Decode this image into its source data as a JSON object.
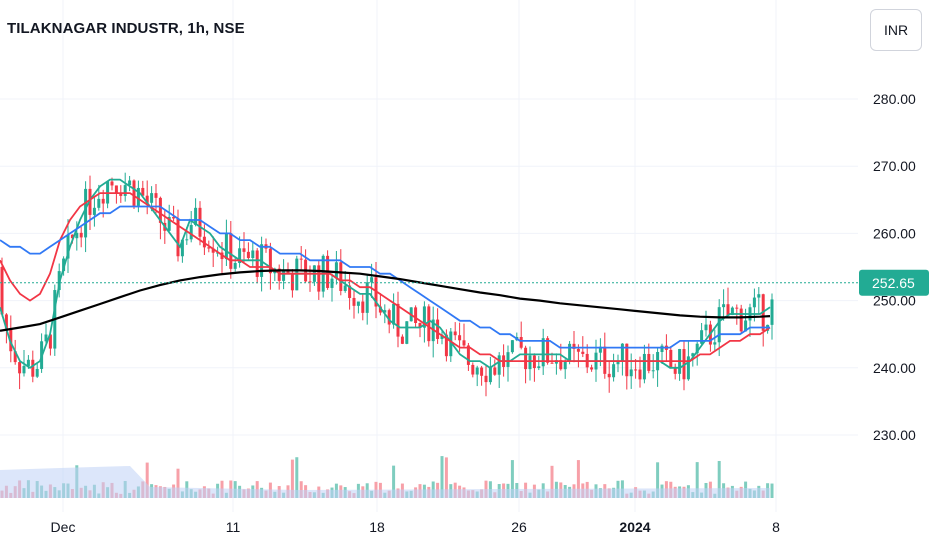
{
  "header": {
    "title": "TILAKNAGAR INDUSTR, 1h, NSE"
  },
  "currency_button": {
    "label": "INR"
  },
  "chart_data": {
    "type": "candlestick",
    "title": "TILAKNAGAR INDUSTR, 1h, NSE",
    "y_axis": {
      "ticks": [
        "280.00",
        "270.00",
        "260.00",
        "250.00",
        "240.00",
        "230.00"
      ],
      "range": [
        220.5,
        288
      ],
      "position": "right"
    },
    "x_axis": {
      "ticks": [
        "Dec",
        "11",
        "18",
        "26",
        "2024",
        "8"
      ]
    },
    "last_price": {
      "label": "252.65",
      "value": 252.65,
      "color": "#22ab94"
    },
    "grid": true,
    "colors": {
      "up": "#22ab94",
      "down": "#f23645",
      "up_volume": "#7fcdbf",
      "down_volume": "#f7a0a8"
    },
    "moving_averages": [
      {
        "color": "#22ab94",
        "points": [
          [
            0,
            249
          ],
          [
            10,
            244
          ],
          [
            20,
            241
          ],
          [
            30,
            240
          ],
          [
            40,
            241
          ],
          [
            50,
            245
          ],
          [
            60,
            253
          ],
          [
            70,
            258
          ],
          [
            80,
            262
          ],
          [
            90,
            265
          ],
          [
            100,
            267
          ],
          [
            110,
            268
          ],
          [
            120,
            268
          ],
          [
            130,
            267
          ],
          [
            140,
            266
          ],
          [
            150,
            264
          ],
          [
            160,
            262
          ],
          [
            170,
            260
          ],
          [
            180,
            258
          ],
          [
            190,
            262
          ],
          [
            200,
            261
          ],
          [
            210,
            260
          ],
          [
            220,
            258
          ],
          [
            230,
            257
          ],
          [
            240,
            256
          ],
          [
            250,
            256
          ],
          [
            260,
            256
          ],
          [
            270,
            255
          ],
          [
            280,
            254
          ],
          [
            290,
            254
          ],
          [
            300,
            254
          ],
          [
            310,
            254
          ],
          [
            320,
            254
          ],
          [
            330,
            254
          ],
          [
            340,
            253
          ],
          [
            350,
            252
          ],
          [
            360,
            251
          ],
          [
            370,
            251
          ],
          [
            380,
            249
          ],
          [
            390,
            247
          ],
          [
            400,
            246
          ],
          [
            410,
            246
          ],
          [
            420,
            246
          ],
          [
            430,
            247
          ],
          [
            440,
            246
          ],
          [
            450,
            244
          ],
          [
            460,
            242
          ],
          [
            470,
            241
          ],
          [
            480,
            241
          ],
          [
            490,
            240
          ],
          [
            500,
            241
          ],
          [
            510,
            241
          ],
          [
            520,
            242
          ],
          [
            530,
            242
          ],
          [
            540,
            242
          ],
          [
            550,
            242
          ],
          [
            560,
            242
          ],
          [
            570,
            241
          ],
          [
            580,
            241
          ],
          [
            590,
            241
          ],
          [
            600,
            241
          ],
          [
            610,
            241
          ],
          [
            620,
            241
          ],
          [
            630,
            241
          ],
          [
            640,
            241
          ],
          [
            650,
            241
          ],
          [
            660,
            241
          ],
          [
            670,
            240
          ],
          [
            680,
            240
          ],
          [
            690,
            241
          ],
          [
            700,
            243
          ],
          [
            710,
            245
          ],
          [
            720,
            247
          ],
          [
            730,
            248
          ],
          [
            740,
            248
          ],
          [
            750,
            248
          ],
          [
            760,
            248
          ],
          [
            770,
            249
          ]
        ]
      },
      {
        "color": "#f23645",
        "points": [
          [
            0,
            256
          ],
          [
            10,
            253
          ],
          [
            20,
            251
          ],
          [
            30,
            250
          ],
          [
            40,
            251
          ],
          [
            50,
            254
          ],
          [
            60,
            259
          ],
          [
            70,
            262
          ],
          [
            80,
            264
          ],
          [
            90,
            265
          ],
          [
            100,
            266
          ],
          [
            110,
            266
          ],
          [
            120,
            266
          ],
          [
            130,
            266
          ],
          [
            140,
            265
          ],
          [
            150,
            264
          ],
          [
            160,
            263
          ],
          [
            170,
            262
          ],
          [
            180,
            261
          ],
          [
            190,
            260
          ],
          [
            200,
            259
          ],
          [
            210,
            258
          ],
          [
            220,
            257
          ],
          [
            230,
            256
          ],
          [
            240,
            256
          ],
          [
            250,
            255
          ],
          [
            260,
            255
          ],
          [
            270,
            255
          ],
          [
            280,
            254
          ],
          [
            290,
            254
          ],
          [
            300,
            254
          ],
          [
            310,
            254
          ],
          [
            320,
            254
          ],
          [
            330,
            254
          ],
          [
            340,
            253
          ],
          [
            350,
            253
          ],
          [
            360,
            252
          ],
          [
            370,
            252
          ],
          [
            380,
            251
          ],
          [
            390,
            250
          ],
          [
            400,
            249
          ],
          [
            410,
            248
          ],
          [
            420,
            247
          ],
          [
            430,
            246
          ],
          [
            440,
            245
          ],
          [
            450,
            244
          ],
          [
            460,
            243
          ],
          [
            470,
            243
          ],
          [
            480,
            242
          ],
          [
            490,
            242
          ],
          [
            500,
            241
          ],
          [
            510,
            241
          ],
          [
            520,
            241
          ],
          [
            530,
            241
          ],
          [
            540,
            241
          ],
          [
            550,
            241
          ],
          [
            560,
            241
          ],
          [
            570,
            241
          ],
          [
            580,
            241
          ],
          [
            590,
            241
          ],
          [
            600,
            241
          ],
          [
            610,
            241
          ],
          [
            620,
            241
          ],
          [
            630,
            241
          ],
          [
            640,
            241
          ],
          [
            650,
            241
          ],
          [
            660,
            241
          ],
          [
            670,
            241
          ],
          [
            680,
            241
          ],
          [
            690,
            241
          ],
          [
            700,
            242
          ],
          [
            710,
            242
          ],
          [
            720,
            243
          ],
          [
            730,
            244
          ],
          [
            740,
            244
          ],
          [
            750,
            245
          ],
          [
            760,
            245
          ],
          [
            770,
            246
          ]
        ]
      },
      {
        "color": "#3179f5",
        "points": [
          [
            0,
            259
          ],
          [
            10,
            258
          ],
          [
            20,
            258
          ],
          [
            30,
            257
          ],
          [
            40,
            257
          ],
          [
            50,
            258
          ],
          [
            60,
            259
          ],
          [
            70,
            260
          ],
          [
            80,
            261
          ],
          [
            90,
            262
          ],
          [
            100,
            263
          ],
          [
            110,
            263
          ],
          [
            120,
            264
          ],
          [
            130,
            264
          ],
          [
            140,
            264
          ],
          [
            150,
            264
          ],
          [
            160,
            264
          ],
          [
            170,
            263
          ],
          [
            180,
            262
          ],
          [
            190,
            262
          ],
          [
            200,
            262
          ],
          [
            210,
            261
          ],
          [
            220,
            260
          ],
          [
            230,
            260
          ],
          [
            240,
            259
          ],
          [
            250,
            259
          ],
          [
            260,
            258
          ],
          [
            270,
            258
          ],
          [
            280,
            257
          ],
          [
            290,
            257
          ],
          [
            300,
            257
          ],
          [
            310,
            256
          ],
          [
            320,
            256
          ],
          [
            330,
            256
          ],
          [
            340,
            256
          ],
          [
            350,
            255
          ],
          [
            360,
            255
          ],
          [
            370,
            255
          ],
          [
            380,
            254
          ],
          [
            390,
            254
          ],
          [
            400,
            253
          ],
          [
            410,
            252
          ],
          [
            420,
            251
          ],
          [
            430,
            250
          ],
          [
            440,
            249
          ],
          [
            450,
            248
          ],
          [
            460,
            247
          ],
          [
            470,
            247
          ],
          [
            480,
            246
          ],
          [
            490,
            246
          ],
          [
            500,
            245
          ],
          [
            510,
            245
          ],
          [
            520,
            244
          ],
          [
            530,
            244
          ],
          [
            540,
            244
          ],
          [
            550,
            244
          ],
          [
            560,
            243
          ],
          [
            570,
            243
          ],
          [
            580,
            243
          ],
          [
            590,
            243
          ],
          [
            600,
            243
          ],
          [
            610,
            243
          ],
          [
            620,
            243
          ],
          [
            630,
            243
          ],
          [
            640,
            243
          ],
          [
            650,
            243
          ],
          [
            660,
            243
          ],
          [
            670,
            243
          ],
          [
            680,
            244
          ],
          [
            690,
            244
          ],
          [
            700,
            244
          ],
          [
            710,
            244
          ],
          [
            720,
            245
          ],
          [
            730,
            245
          ],
          [
            740,
            245
          ],
          [
            750,
            246
          ],
          [
            760,
            246
          ],
          [
            770,
            246
          ]
        ]
      },
      {
        "color": "#000000",
        "points": [
          [
            0,
            245.5
          ],
          [
            20,
            246
          ],
          [
            40,
            246.5
          ],
          [
            60,
            247.5
          ],
          [
            80,
            248.5
          ],
          [
            100,
            249.5
          ],
          [
            120,
            250.5
          ],
          [
            140,
            251.5
          ],
          [
            160,
            252.3
          ],
          [
            180,
            253
          ],
          [
            200,
            253.5
          ],
          [
            220,
            253.9
          ],
          [
            240,
            254.2
          ],
          [
            260,
            254.4
          ],
          [
            280,
            254.5
          ],
          [
            300,
            254.5
          ],
          [
            320,
            254.4
          ],
          [
            340,
            254.2
          ],
          [
            360,
            254
          ],
          [
            380,
            253.6
          ],
          [
            400,
            253.2
          ],
          [
            420,
            252.7
          ],
          [
            440,
            252.2
          ],
          [
            460,
            251.7
          ],
          [
            480,
            251.2
          ],
          [
            500,
            250.8
          ],
          [
            520,
            250.3
          ],
          [
            540,
            250
          ],
          [
            560,
            249.6
          ],
          [
            580,
            249.3
          ],
          [
            600,
            249
          ],
          [
            620,
            248.7
          ],
          [
            640,
            248.4
          ],
          [
            660,
            248.1
          ],
          [
            680,
            247.8
          ],
          [
            700,
            247.6
          ],
          [
            720,
            247.5
          ],
          [
            740,
            247.5
          ],
          [
            760,
            247.6
          ],
          [
            770,
            247.7
          ]
        ]
      }
    ]
  }
}
